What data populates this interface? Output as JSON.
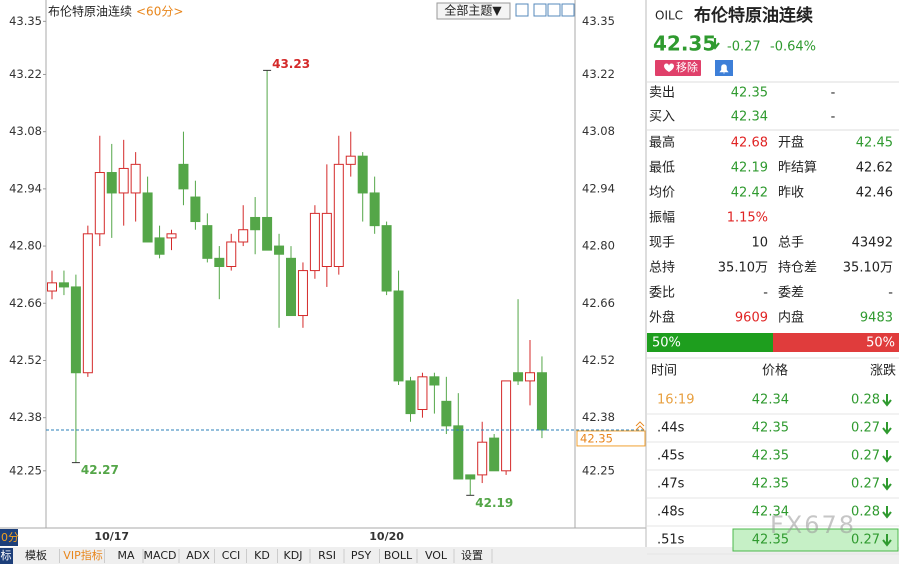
{
  "top_bar": {
    "title": "布伦特原油连续",
    "period": "<60分>",
    "theme_button": "全部主题▼"
  },
  "chart_data": {
    "type": "candlestick",
    "categories": [
      null,
      null,
      null,
      null,
      null,
      "10/17",
      null,
      null,
      null,
      null,
      null,
      null,
      null,
      null,
      null,
      null,
      null,
      null,
      null,
      null,
      null,
      null,
      null,
      null,
      null,
      null,
      null,
      null,
      "10/20",
      null,
      null,
      null,
      null,
      null,
      null,
      null,
      null,
      null,
      null,
      null,
      null,
      null
    ],
    "open": [
      42.69,
      42.71,
      42.7,
      42.49,
      42.83,
      42.98,
      42.93,
      42.93,
      42.93,
      42.82,
      42.82,
      43.0,
      42.92,
      42.85,
      42.77,
      42.75,
      42.81,
      42.87,
      42.87,
      42.8,
      42.77,
      42.63,
      42.74,
      42.75,
      42.75,
      43.0,
      43.02,
      42.93,
      42.85,
      42.69,
      42.47,
      42.4,
      42.48,
      42.42,
      42.36,
      42.24,
      42.24,
      42.33,
      42.25,
      42.49,
      42.47,
      42.49
    ],
    "high": [
      42.74,
      42.74,
      42.73,
      42.85,
      43.07,
      43.05,
      43.06,
      43.03,
      42.97,
      42.85,
      42.84,
      43.08,
      42.96,
      42.88,
      42.8,
      42.83,
      42.9,
      42.92,
      43.23,
      42.83,
      42.8,
      42.76,
      42.9,
      43.0,
      43.07,
      43.08,
      43.03,
      42.97,
      42.86,
      42.74,
      42.48,
      42.49,
      42.49,
      42.48,
      42.44,
      42.24,
      42.37,
      42.34,
      42.47,
      42.67,
      42.57,
      42.53
    ],
    "low": [
      42.67,
      42.68,
      42.27,
      42.48,
      42.8,
      42.82,
      42.85,
      42.86,
      42.82,
      42.77,
      42.79,
      42.9,
      42.84,
      42.76,
      42.67,
      42.74,
      42.8,
      42.78,
      42.8,
      42.6,
      42.63,
      42.6,
      42.72,
      42.7,
      42.73,
      42.97,
      42.86,
      42.83,
      42.68,
      42.46,
      42.37,
      42.38,
      42.39,
      42.34,
      42.23,
      42.19,
      42.22,
      42.25,
      42.24,
      42.46,
      42.41,
      42.33
    ],
    "close": [
      42.71,
      42.7,
      42.49,
      42.83,
      42.98,
      42.93,
      42.99,
      43.0,
      42.81,
      42.78,
      42.83,
      42.94,
      42.86,
      42.77,
      42.75,
      42.81,
      42.84,
      42.84,
      42.79,
      42.78,
      42.63,
      42.74,
      42.88,
      42.88,
      43.0,
      43.02,
      42.93,
      42.85,
      42.69,
      42.47,
      42.39,
      42.48,
      42.46,
      42.36,
      42.23,
      42.23,
      42.32,
      42.25,
      42.47,
      42.47,
      42.49,
      42.35
    ],
    "ylim": [
      42.11,
      43.39
    ],
    "yticks": [
      43.35,
      43.22,
      43.08,
      42.94,
      {
        "value": 42.8,
        "label": "42.80"
      },
      42.66,
      42.52,
      42.38,
      42.25
    ],
    "annotations": [
      43.23,
      42.27,
      42.19
    ],
    "last_price": 42.35,
    "up_color": "#d42a2a",
    "down_color": "#54a648",
    "price_line_color": "#2a7fb8"
  },
  "quote": {
    "symbol": "OILC",
    "name": "布伦特原油连续",
    "price": "42.35",
    "change": "-0.27",
    "change_pct": "-0.64%",
    "remove_button": "移除",
    "bid_ask": [
      {
        "label": "卖出",
        "value": "42.35",
        "extra": "-"
      },
      {
        "label": "买入",
        "value": "42.34",
        "extra": "-"
      }
    ],
    "stats": [
      {
        "label": "最高",
        "value": "42.68",
        "label2": "开盘",
        "value2": "42.45"
      },
      {
        "label": "最低",
        "value": "42.19",
        "label2": "昨结算",
        "value2": "42.62"
      },
      {
        "label": "均价",
        "value": "42.42",
        "label2": "昨收",
        "value2": "42.46"
      },
      {
        "label": "振幅",
        "value": "1.15%"
      },
      {
        "label": "现手",
        "value": "10",
        "label2": "总手",
        "value2": "43492"
      },
      {
        "label": "总持",
        "value": "35.10万",
        "label2": "持仓差",
        "value2": "35.10万"
      },
      {
        "label": "委比",
        "value": "-",
        "label2": "委差",
        "value2": "-"
      },
      {
        "label": "外盘",
        "value": "9609",
        "label2": "内盘",
        "value2": "9483"
      }
    ],
    "buy_pct": "50%",
    "sell_pct": "50%"
  },
  "trades": {
    "headers": [
      "时间",
      "价格",
      "涨跌"
    ],
    "rows": [
      {
        "time": "16:19",
        "price": "42.34",
        "change": "0.28"
      },
      {
        "time": ".44s",
        "price": "42.35",
        "change": "0.27"
      },
      {
        "time": ".45s",
        "price": "42.35",
        "change": "0.27"
      },
      {
        "time": ".47s",
        "price": "42.35",
        "change": "0.27"
      },
      {
        "time": ".48s",
        "price": "42.34",
        "change": "0.28"
      },
      {
        "time": ".51s",
        "price": "42.35",
        "change": "0.27"
      }
    ]
  },
  "bottom_tab": "0分",
  "toolbar": [
    "标",
    "模板",
    "VIP指标",
    "MA",
    "MACD",
    "ADX",
    "CCI",
    "KD",
    "KDJ",
    "RSI",
    "PSY",
    "BOLL",
    "VOL",
    "设置"
  ],
  "watermark": "FX678"
}
